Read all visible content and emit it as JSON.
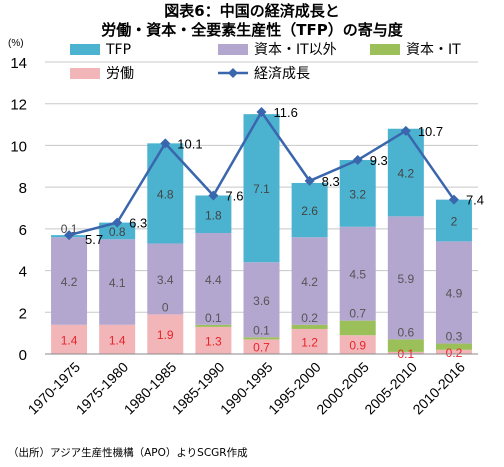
{
  "title_line1": "図表6：中国の経済成長と",
  "title_line2": "労働・資本・全要素生産性（TFP）の寄与度",
  "source": "（出所）アジア生産性機構（APO）よりSCGR作成",
  "chart_data": {
    "type": "bar",
    "stacked": true,
    "unit_label": "(%)",
    "categories": [
      "1970-1975",
      "1975-1980",
      "1980-1985",
      "1985-1990",
      "1990-1995",
      "1995-2000",
      "2000-2005",
      "2005-2010",
      "2010-2016"
    ],
    "ylim": [
      0,
      14
    ],
    "yticks": [
      0,
      2,
      4,
      6,
      8,
      10,
      12,
      14
    ],
    "grid": true,
    "legend_position": "top",
    "series": [
      {
        "name": "労働",
        "color": "#f3b6b8",
        "label_color": "#e8232c",
        "values": [
          1.4,
          1.4,
          1.9,
          1.3,
          0.7,
          1.2,
          0.9,
          0.1,
          0.2
        ]
      },
      {
        "name": "資本・IT",
        "color": "#9bc05a",
        "label_color": "#555555",
        "values": [
          null,
          null,
          0,
          0.1,
          0.1,
          0.2,
          0.7,
          0.6,
          0.3
        ]
      },
      {
        "name": "資本・IT以外",
        "color": "#b3a6cf",
        "label_color": "#555555",
        "values": [
          4.2,
          4.1,
          3.4,
          4.4,
          3.6,
          4.2,
          4.5,
          5.9,
          4.9
        ]
      },
      {
        "name": "TFP",
        "color": "#4bb3cf",
        "label_color": "#444444",
        "values": [
          0.1,
          0.8,
          4.8,
          1.8,
          7.1,
          2.6,
          3.2,
          4.2,
          2
        ]
      }
    ],
    "line": {
      "name": "経済成長",
      "color": "#3a66ad",
      "values": [
        5.7,
        6.3,
        10.1,
        7.6,
        11.6,
        8.3,
        9.3,
        10.7,
        7.4
      ]
    }
  }
}
